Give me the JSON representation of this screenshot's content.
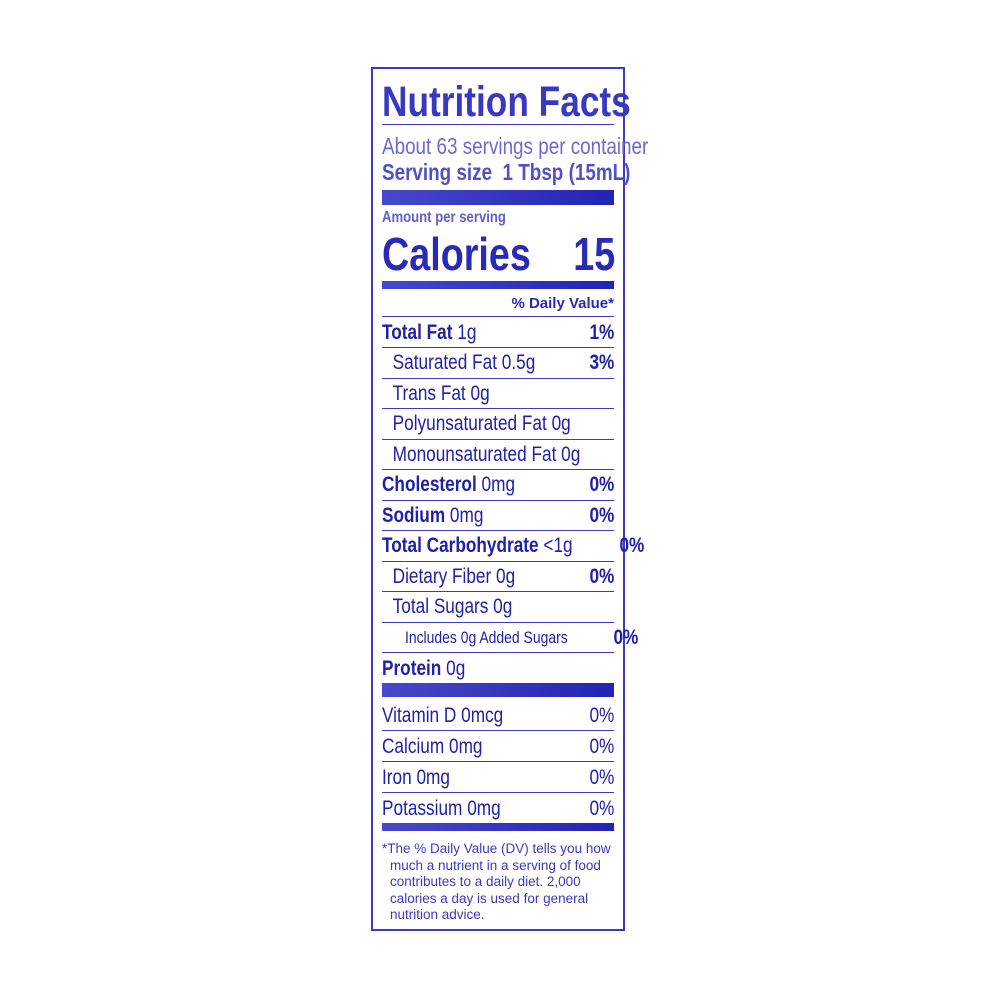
{
  "title": "Nutrition Facts",
  "servings_per_container": "About 63 servings per container",
  "serving_size_label": "Serving size",
  "serving_size_value": "1 Tbsp (15mL)",
  "amount_per_serving": "Amount per serving",
  "calories_label": "Calories",
  "calories_value": "15",
  "daily_value_header": "% Daily Value*",
  "nutrients": [
    {
      "name": "Total Fat",
      "amount": "1g",
      "dv": "1%",
      "bold": true,
      "indent": 0
    },
    {
      "name": "Saturated Fat",
      "amount": "0.5g",
      "dv": "3%",
      "bold": false,
      "indent": 1
    },
    {
      "name": "Trans Fat",
      "amount": "0g",
      "dv": "",
      "bold": false,
      "indent": 1
    },
    {
      "name": "Polyunsaturated Fat",
      "amount": "0g",
      "dv": "",
      "bold": false,
      "indent": 1
    },
    {
      "name": "Monounsaturated Fat",
      "amount": "0g",
      "dv": "",
      "bold": false,
      "indent": 1
    },
    {
      "name": "Cholesterol",
      "amount": "0mg",
      "dv": "0%",
      "bold": true,
      "indent": 0
    },
    {
      "name": "Sodium",
      "amount": "0mg",
      "dv": "0%",
      "bold": true,
      "indent": 0
    },
    {
      "name": "Total Carbohydrate",
      "amount": "<1g",
      "dv": "0%",
      "bold": true,
      "indent": 0
    },
    {
      "name": "Dietary Fiber",
      "amount": "0g",
      "dv": "0%",
      "bold": false,
      "indent": 1
    },
    {
      "name": "Total Sugars",
      "amount": "0g",
      "dv": "",
      "bold": false,
      "indent": 1
    },
    {
      "name": "Includes 0g Added Sugars",
      "amount": "",
      "dv": "0%",
      "bold": false,
      "indent": 2
    },
    {
      "name": "Protein",
      "amount": "0g",
      "dv": "",
      "bold": true,
      "indent": 0
    }
  ],
  "vitamins": [
    {
      "name": "Vitamin D",
      "amount": "0mcg",
      "dv": "0%"
    },
    {
      "name": "Calcium",
      "amount": "0mg",
      "dv": "0%"
    },
    {
      "name": "Iron",
      "amount": "0mg",
      "dv": "0%"
    },
    {
      "name": "Potassium",
      "amount": "0mg",
      "dv": "0%"
    }
  ],
  "footnote": [
    "*The % Daily Value (DV) tells you how",
    "much a nutrient in a serving of food",
    "contributes to a daily diet. 2,000",
    "calories a day is used for general",
    "nutrition advice."
  ]
}
